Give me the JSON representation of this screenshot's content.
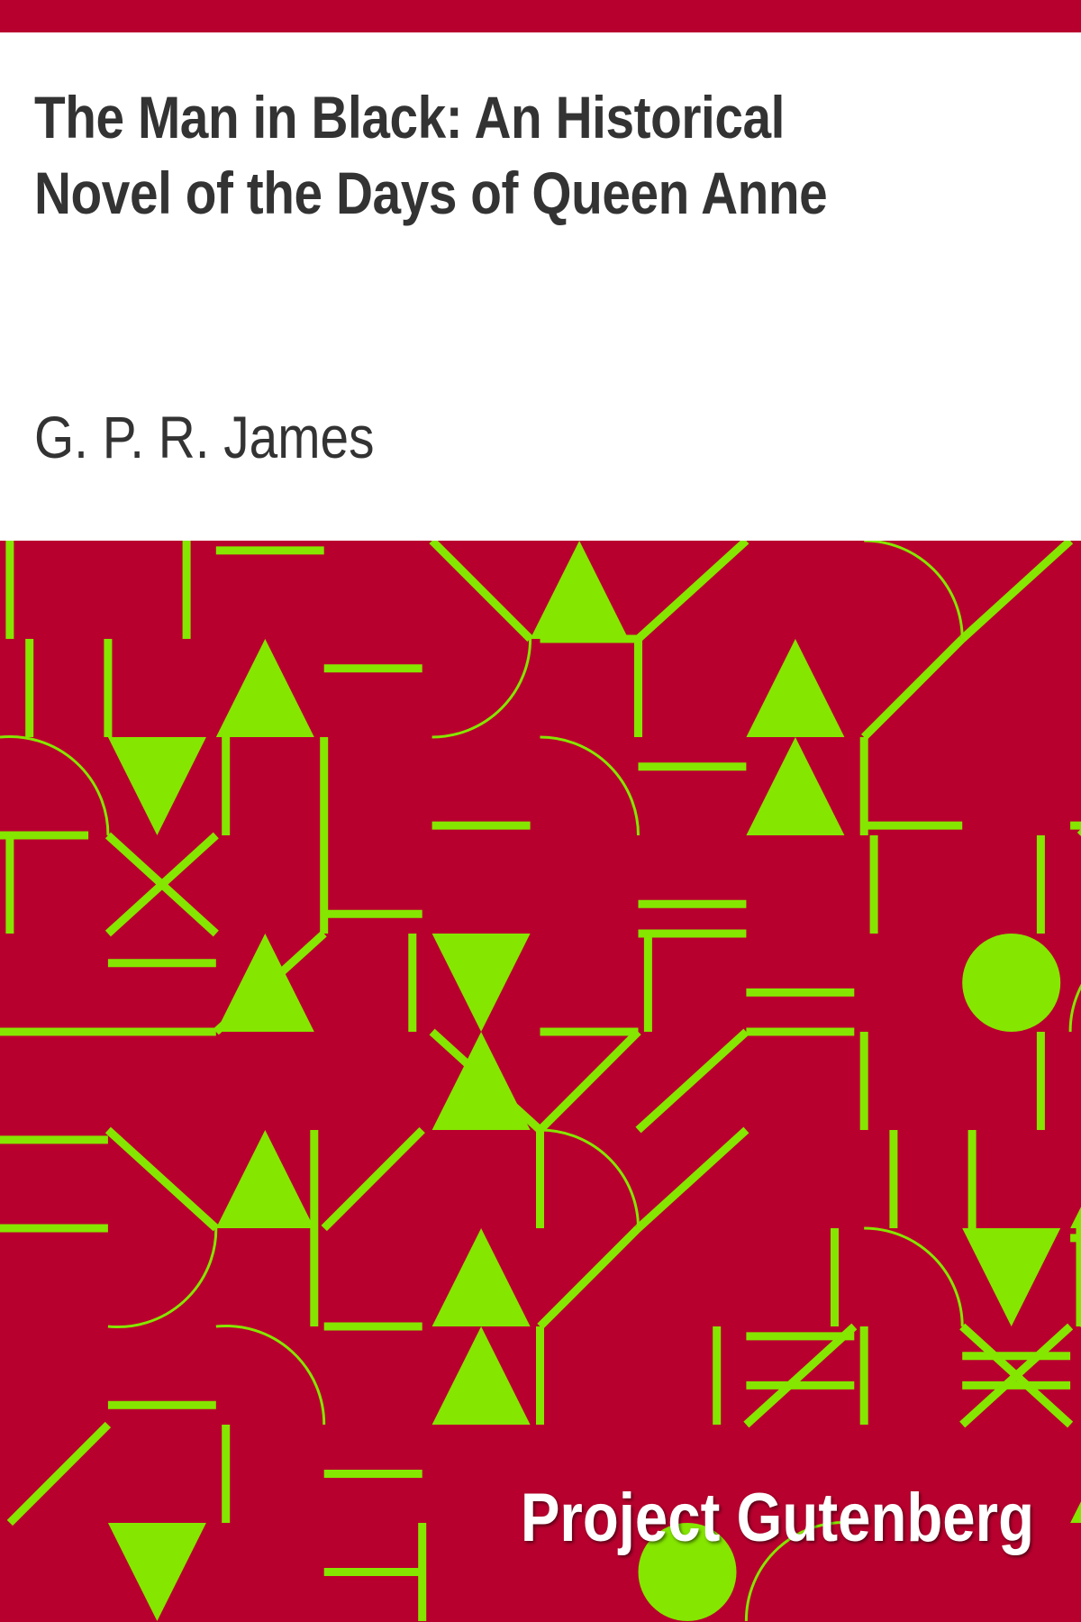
{
  "book": {
    "title": "The Man in Black: An Historical Novel of the Days of Queen Anne",
    "author": "G. P. R. James",
    "publisher": "Project Gutenberg"
  },
  "colors": {
    "background": "#ffffff",
    "accent": "#b8002e",
    "pattern": "#85e600",
    "title_text": "#333333",
    "publisher_text": "#ffffff"
  }
}
